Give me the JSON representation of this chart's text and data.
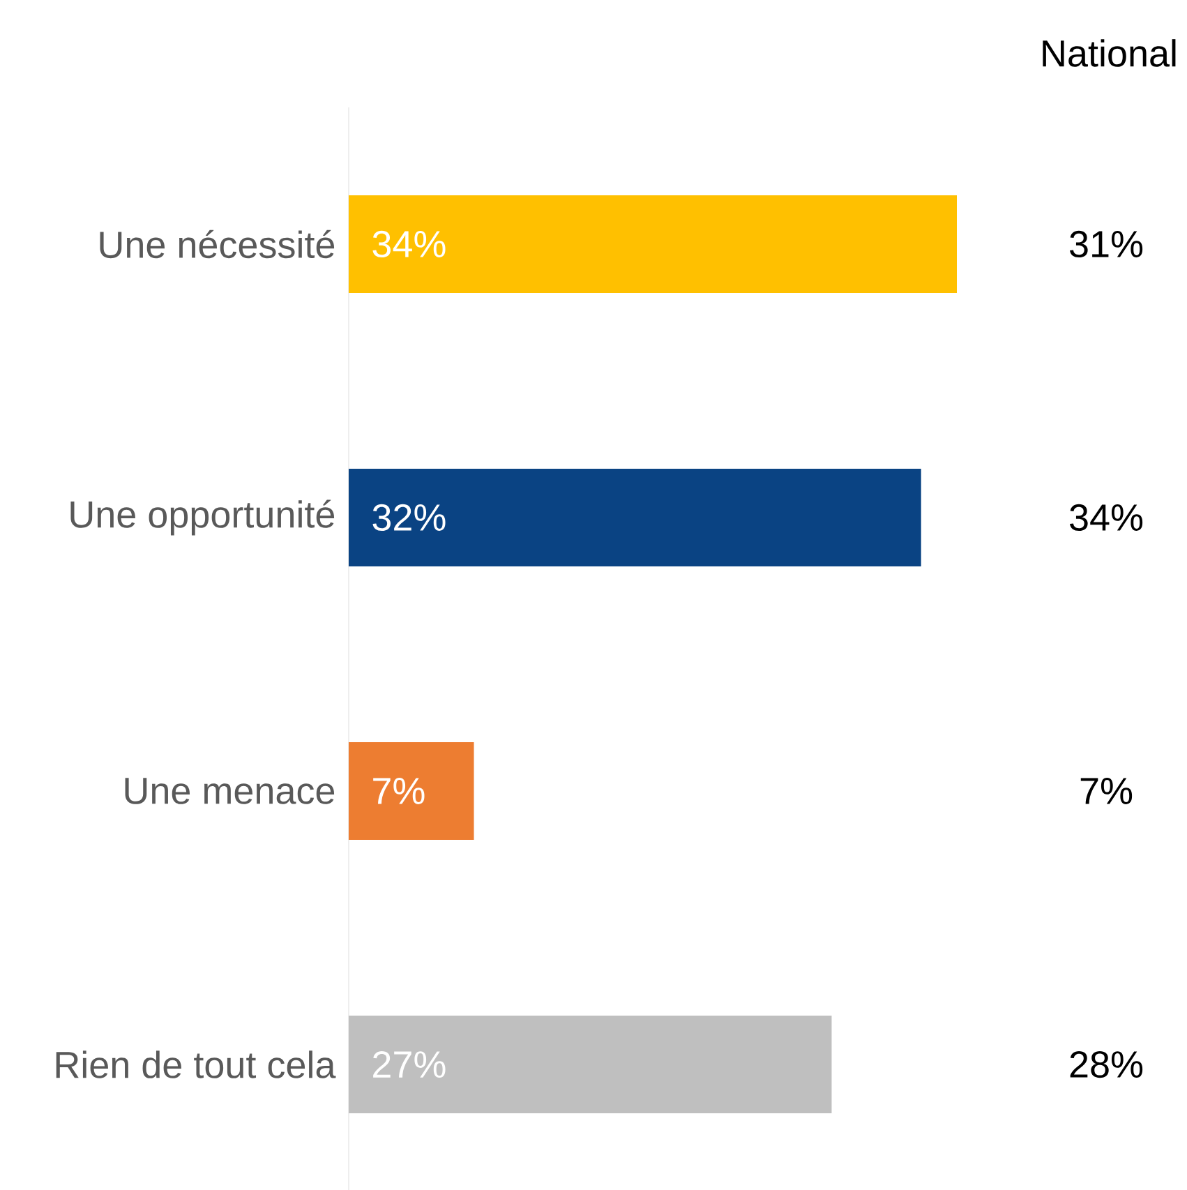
{
  "chart_data": {
    "type": "bar",
    "orientation": "horizontal",
    "categories": [
      "Une nécessité",
      "Une opportunité",
      "Une menace",
      "Rien de tout cela"
    ],
    "values": [
      34,
      32,
      7,
      27
    ],
    "value_labels": [
      "34%",
      "32%",
      "7%",
      "27%"
    ],
    "colors": [
      "#ffc000",
      "#0a4383",
      "#ed7d31",
      "#bfbfbf"
    ],
    "annotations": [
      "National",
      "31%",
      "34%",
      "7%",
      "28%"
    ]
  }
}
